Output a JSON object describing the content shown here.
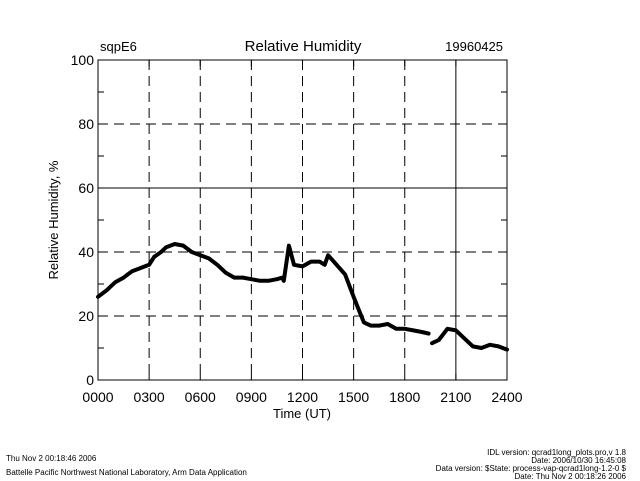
{
  "chart_data": {
    "type": "line",
    "title": "Relative Humidity",
    "site": "sqpE6",
    "date": "19960425",
    "xlabel": "Time (UT)",
    "ylabel": "Relative Humidity, %",
    "xlim": [
      0,
      24
    ],
    "ylim": [
      0,
      100
    ],
    "x_ticks": [
      0,
      3,
      6,
      9,
      12,
      15,
      18,
      21,
      24
    ],
    "x_tick_labels": [
      "0000",
      "0300",
      "0600",
      "0900",
      "1200",
      "1500",
      "1800",
      "2100",
      "2400"
    ],
    "y_ticks": [
      0,
      20,
      40,
      60,
      80,
      100
    ],
    "y_tick_labels": [
      "0",
      "20",
      "40",
      "60",
      "80",
      "100"
    ],
    "grid_dashed_x": [
      3,
      6,
      9,
      12,
      15,
      18
    ],
    "grid_solid_x": [
      21
    ],
    "grid_dashed_y": [
      20,
      40,
      80
    ],
    "grid_solid_y": [
      60
    ],
    "series": [
      {
        "name": "Relative Humidity",
        "color": "#000000",
        "x": [
          0,
          0.5,
          1,
          1.5,
          2,
          2.5,
          3,
          3.3,
          3.7,
          4,
          4.5,
          5,
          5.5,
          6,
          6.5,
          7,
          7.5,
          8,
          8.5,
          9,
          9.5,
          10,
          10.5,
          10.8,
          10.9,
          11.2,
          11.5,
          12,
          12.5,
          13,
          13.3,
          13.5,
          14,
          14.5,
          15,
          15.3,
          15.6,
          16,
          16.5,
          17,
          17.5,
          18,
          18.5,
          19,
          19.4,
          19.5,
          19.6,
          20,
          20.5,
          21,
          21.5,
          22,
          22.5,
          23,
          23.5,
          24
        ],
        "y": [
          26,
          28,
          30.5,
          32,
          34,
          35,
          36,
          38.5,
          40,
          41.5,
          42.5,
          42,
          40,
          39,
          38,
          36,
          33.5,
          32,
          32,
          31.5,
          31,
          31,
          31.5,
          32,
          31,
          42,
          36,
          35.5,
          37,
          37,
          36,
          39,
          36,
          33,
          26,
          22,
          18,
          17,
          17,
          17.5,
          16,
          16,
          15.5,
          15,
          14.5,
          null,
          11.5,
          12.5,
          16,
          15.5,
          13,
          10.5,
          10,
          11,
          10.5,
          9.5
        ]
      }
    ]
  },
  "footer": {
    "left_line1": "Thu Nov  2 00:18:46 2006",
    "left_line2": "Battelle Pacific Northwest National Laboratory, Arm Data Application",
    "right_line1": "IDL version: qcrad1long_plots.pro,v 1.8",
    "right_line2": "Date: 2006/10/30 16:45:08",
    "right_line3": "Data version: $State: process-vap-qcrad1long-1.2-0 $",
    "right_line4": "Date: Thu Nov  2 00:18:26 2006"
  }
}
